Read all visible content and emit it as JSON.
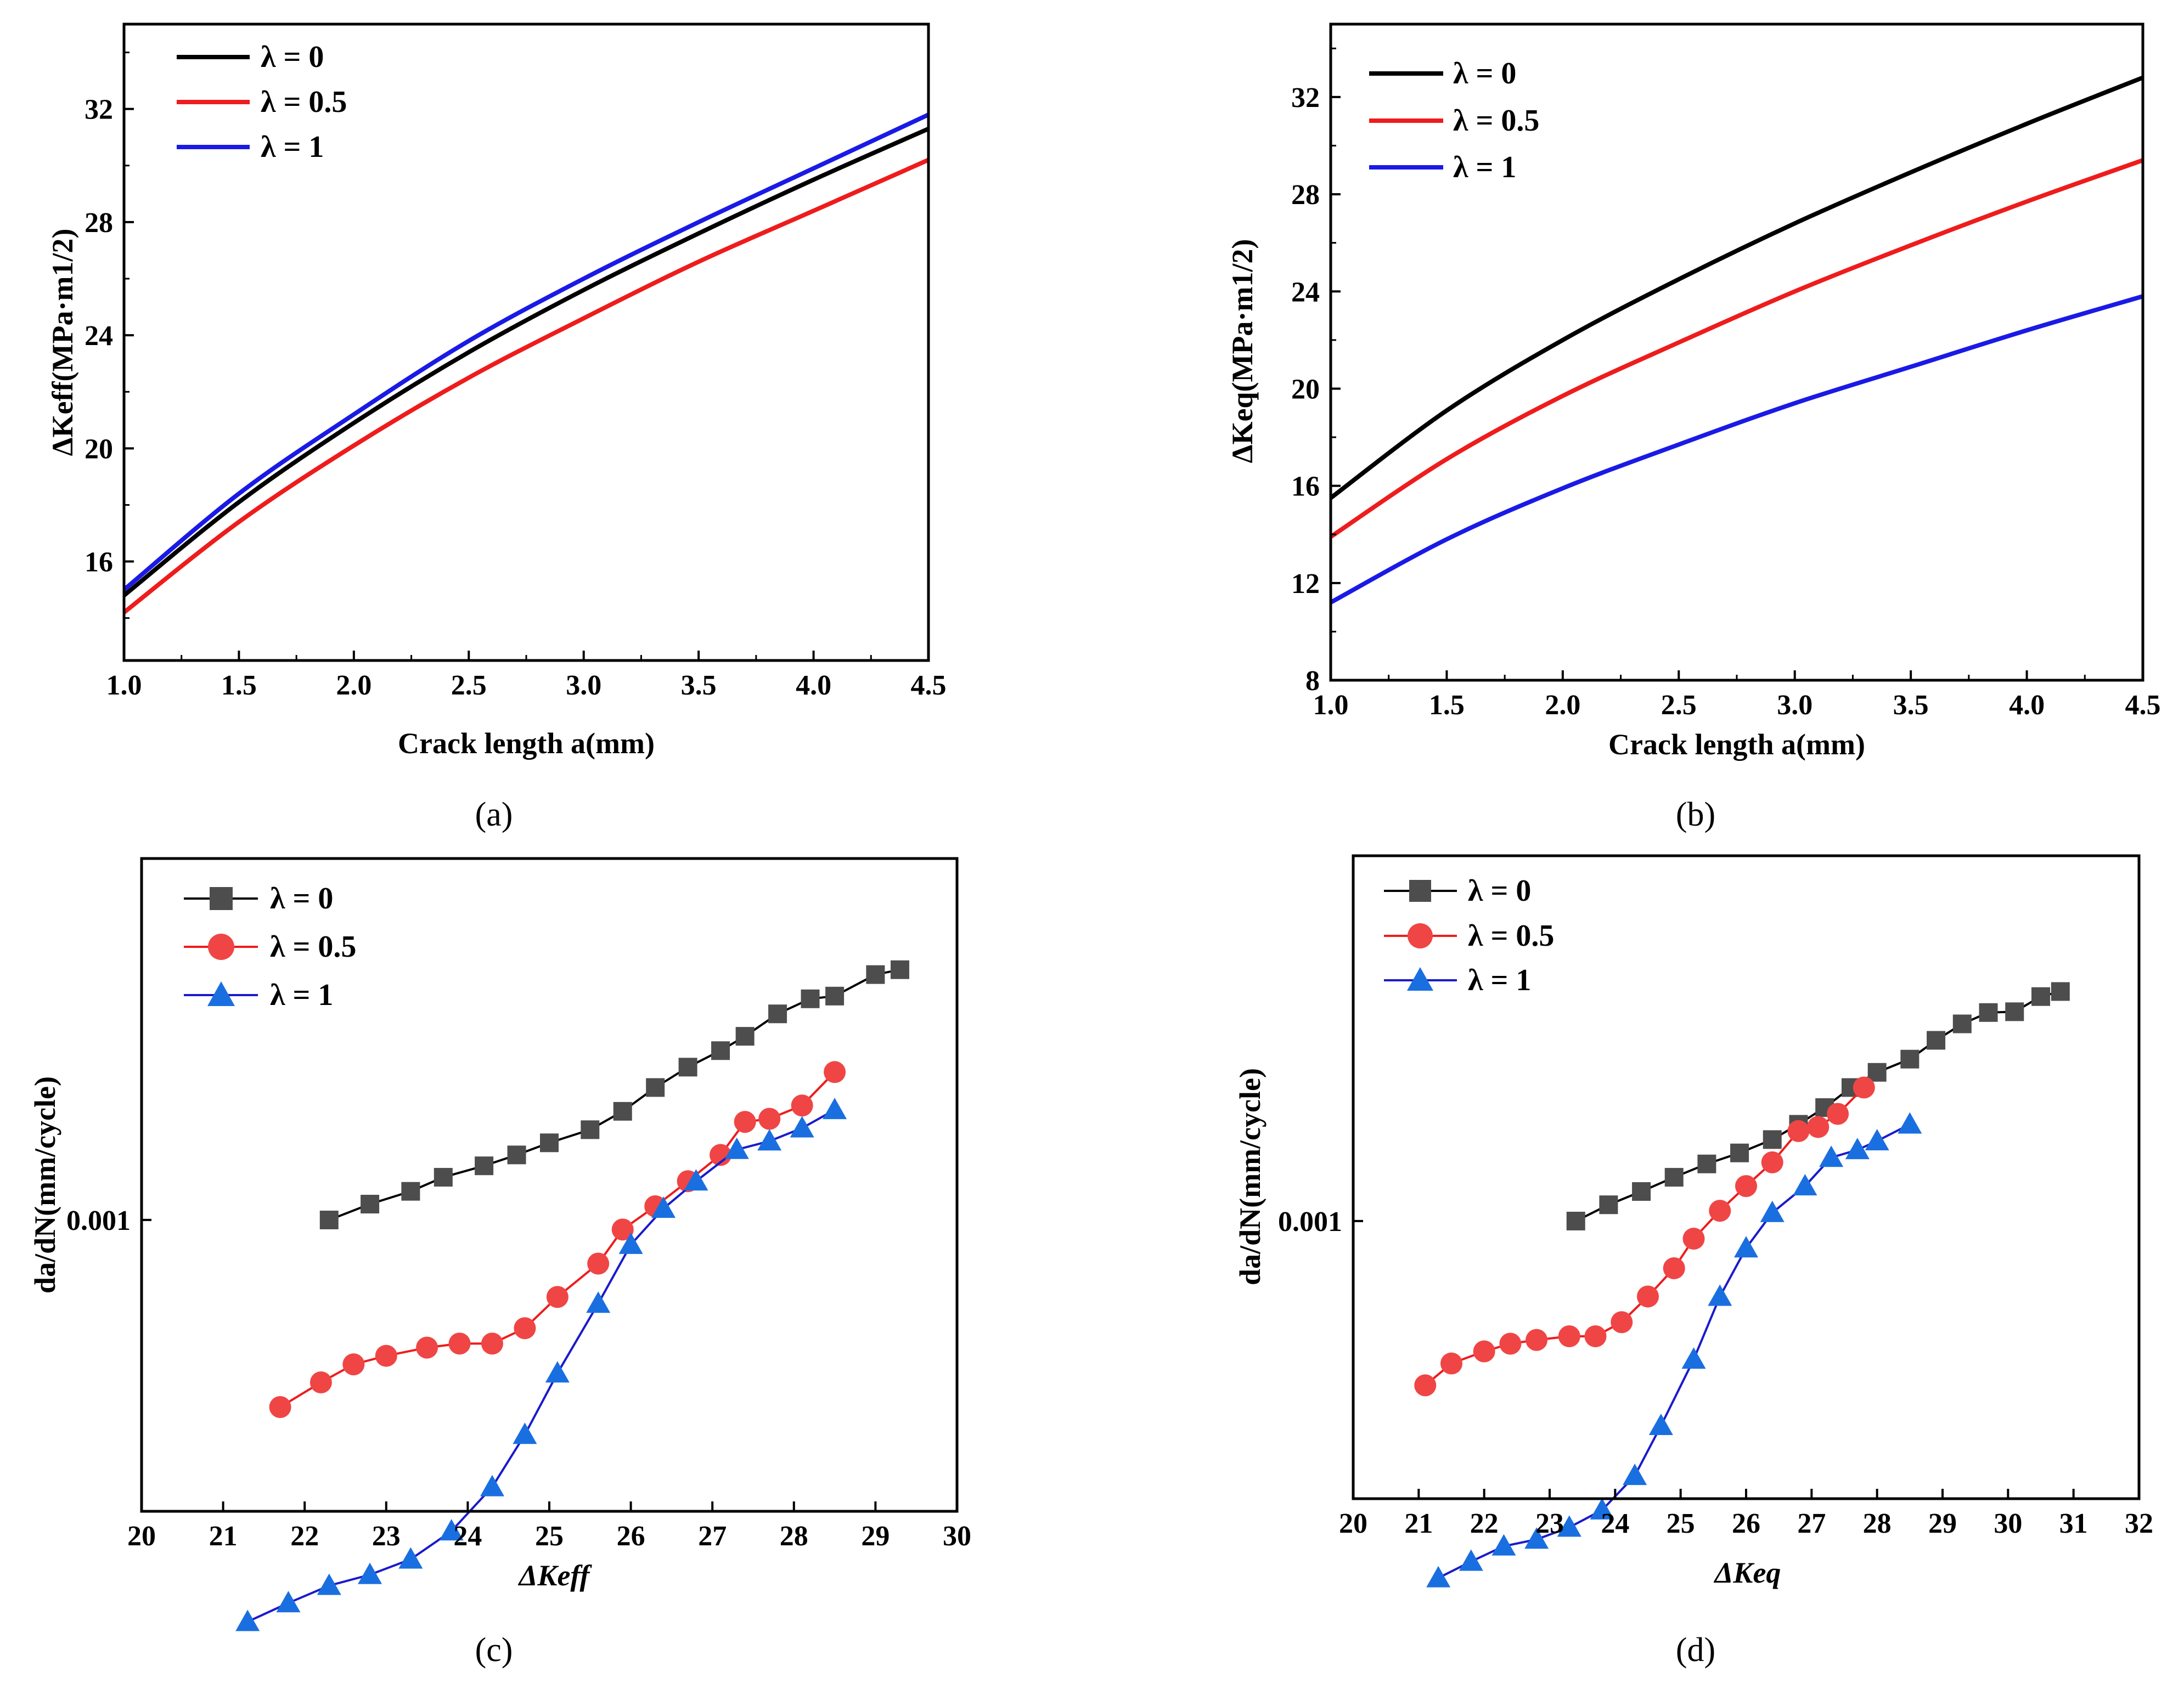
{
  "chart_data": [
    {
      "type": "line",
      "panel_label": "(a)",
      "xlabel": "Crack length a(mm)",
      "ylabel": "ΔKeff(MPa·m1/2)",
      "xlim": [
        1.0,
        4.5
      ],
      "ylim": [
        12.5,
        35.0
      ],
      "xticks": [
        "1.0",
        "1.5",
        "2.0",
        "2.5",
        "3.0",
        "3.5",
        "4.0",
        "4.5"
      ],
      "yticks": [
        "16",
        "20",
        "24",
        "28",
        "32"
      ],
      "legend": [
        "λ = 0",
        "λ = 0.5",
        "λ = 1"
      ],
      "series": [
        {
          "name": "λ = 0",
          "color": "#000000",
          "x": [
            1.0,
            1.5,
            2.0,
            2.5,
            3.0,
            3.5,
            4.0,
            4.5
          ],
          "y": [
            14.8,
            18.1,
            20.9,
            23.4,
            25.6,
            27.6,
            29.5,
            31.3
          ]
        },
        {
          "name": "λ = 0.5",
          "color": "#ee1c1c",
          "x": [
            1.0,
            1.5,
            2.0,
            2.5,
            3.0,
            3.5,
            4.0,
            4.5
          ],
          "y": [
            14.2,
            17.4,
            20.1,
            22.5,
            24.6,
            26.6,
            28.4,
            30.2
          ]
        },
        {
          "name": "λ = 1",
          "color": "#1a1ae6",
          "x": [
            1.0,
            1.5,
            2.0,
            2.5,
            3.0,
            3.5,
            4.0,
            4.5
          ],
          "y": [
            15.0,
            18.4,
            21.2,
            23.8,
            26.0,
            28.0,
            29.9,
            31.8
          ]
        }
      ]
    },
    {
      "type": "line",
      "panel_label": "(b)",
      "xlabel": "Crack length a(mm)",
      "ylabel": "ΔKeq(MPa·m1/2)",
      "xlim": [
        1.0,
        4.5
      ],
      "ylim": [
        8.0,
        35.0
      ],
      "xticks": [
        "1.0",
        "1.5",
        "2.0",
        "2.5",
        "3.0",
        "3.5",
        "4.0",
        "4.5"
      ],
      "yticks": [
        "8",
        "12",
        "16",
        "20",
        "24",
        "28",
        "32"
      ],
      "legend": [
        "λ = 0",
        "λ = 0.5",
        "λ = 1"
      ],
      "series": [
        {
          "name": "λ = 0",
          "color": "#000000",
          "x": [
            1.0,
            1.5,
            2.0,
            2.5,
            3.0,
            3.5,
            4.0,
            4.5
          ],
          "y": [
            15.5,
            19.1,
            22.0,
            24.5,
            26.8,
            28.9,
            30.9,
            32.8
          ]
        },
        {
          "name": "λ = 0.5",
          "color": "#ee1c1c",
          "x": [
            1.0,
            1.5,
            2.0,
            2.5,
            3.0,
            3.5,
            4.0,
            4.5
          ],
          "y": [
            13.9,
            17.1,
            19.7,
            21.9,
            24.0,
            25.9,
            27.7,
            29.4
          ]
        },
        {
          "name": "λ = 1",
          "color": "#1a1ae6",
          "x": [
            1.0,
            1.5,
            2.0,
            2.5,
            3.0,
            3.5,
            4.0,
            4.5
          ],
          "y": [
            11.2,
            13.8,
            15.9,
            17.7,
            19.4,
            20.9,
            22.4,
            23.8
          ]
        }
      ]
    },
    {
      "type": "scatter",
      "panel_label": "(c)",
      "xlabel": "ΔKeff",
      "ylabel": "da/dN(mm/cycle)",
      "yscale": "log",
      "xlim": [
        20,
        30
      ],
      "ylim_log10": [
        -3.54,
        -2.33
      ],
      "xticks": [
        "20",
        "21",
        "22",
        "23",
        "24",
        "25",
        "26",
        "27",
        "28",
        "29",
        "30"
      ],
      "yticks": [
        "0.001"
      ],
      "legend": [
        "λ = 0",
        "λ = 0.5",
        "λ = 1"
      ],
      "series": [
        {
          "name": "λ = 0",
          "marker": "square",
          "color": "#4d4d4d",
          "line": "#000000",
          "x": [
            22.3,
            22.8,
            23.3,
            23.7,
            24.2,
            24.6,
            25.0,
            25.5,
            25.9,
            26.3,
            26.7,
            27.1,
            27.4,
            27.8,
            28.2,
            28.5,
            29.0,
            29.3
          ],
          "y": [
            0.001,
            0.00107,
            0.00113,
            0.0012,
            0.00126,
            0.00132,
            0.00139,
            0.00147,
            0.00159,
            0.00176,
            0.00192,
            0.00206,
            0.00219,
            0.00241,
            0.00257,
            0.0026,
            0.00285,
            0.00291
          ]
        },
        {
          "name": "λ = 0.5",
          "marker": "circle",
          "color": "#f04545",
          "line": "#ee1c1c",
          "x": [
            21.7,
            22.2,
            22.6,
            23.0,
            23.5,
            23.9,
            24.3,
            24.7,
            25.1,
            25.6,
            25.9,
            26.3,
            26.7,
            27.1,
            27.4,
            27.7,
            28.1,
            28.5
          ],
          "y": [
            0.00045,
            0.0005,
            0.00054,
            0.00056,
            0.00058,
            0.00059,
            0.00059,
            0.00063,
            0.00072,
            0.00083,
            0.00096,
            0.00106,
            0.00118,
            0.00132,
            0.00152,
            0.00154,
            0.00163,
            0.00188
          ]
        },
        {
          "name": "λ = 1",
          "marker": "triangle",
          "color": "#1a6fe0",
          "line": "#1a1acc",
          "x": [
            21.3,
            21.8,
            22.3,
            22.8,
            23.3,
            23.8,
            24.3,
            24.7,
            25.1,
            25.6,
            26.0,
            26.4,
            26.8,
            27.3,
            27.7,
            28.1,
            28.5
          ],
          "y": [
            0.00018,
            0.000195,
            0.00021,
            0.00022,
            0.000235,
            0.000265,
            0.00032,
            0.0004,
            0.00052,
            0.0007,
            0.0009,
            0.00105,
            0.00118,
            0.00135,
            0.0014,
            0.00148,
            0.0016
          ]
        }
      ]
    },
    {
      "type": "scatter",
      "panel_label": "(d)",
      "xlabel": "ΔKeq",
      "ylabel": "da/dN(mm/cycle)",
      "yscale": "log",
      "xlim": [
        20,
        32
      ],
      "ylim_log10": [
        -3.57,
        -2.25
      ],
      "xticks": [
        "20",
        "21",
        "22",
        "23",
        "24",
        "25",
        "26",
        "27",
        "28",
        "29",
        "30",
        "31",
        "32"
      ],
      "yticks": [
        "0.001"
      ],
      "legend": [
        "λ = 0",
        "λ = 0.5",
        "λ = 1"
      ],
      "series": [
        {
          "name": "λ = 0",
          "marker": "square",
          "color": "#4d4d4d",
          "line": "#000000",
          "x": [
            23.4,
            23.9,
            24.4,
            24.9,
            25.4,
            25.9,
            26.4,
            26.8,
            27.2,
            27.6,
            28.0,
            28.5,
            28.9,
            29.3,
            29.7,
            30.1,
            30.5,
            30.8
          ],
          "y": [
            0.001,
            0.00108,
            0.00115,
            0.00123,
            0.00131,
            0.00138,
            0.00147,
            0.00158,
            0.00171,
            0.00188,
            0.00202,
            0.00215,
            0.00235,
            0.00254,
            0.00268,
            0.00269,
            0.00289,
            0.00296
          ]
        },
        {
          "name": "λ = 0.5",
          "marker": "circle",
          "color": "#f04545",
          "line": "#ee1c1c",
          "x": [
            21.1,
            21.5,
            22.0,
            22.4,
            22.8,
            23.3,
            23.7,
            24.1,
            24.5,
            24.9,
            25.2,
            25.6,
            26.0,
            26.4,
            26.8,
            27.1,
            27.4,
            27.8
          ],
          "y": [
            0.00046,
            0.00051,
            0.00054,
            0.00056,
            0.00057,
            0.00058,
            0.00058,
            0.00062,
            0.0007,
            0.0008,
            0.00092,
            0.00105,
            0.00118,
            0.00132,
            0.00153,
            0.00156,
            0.00166,
            0.00188
          ]
        },
        {
          "name": "λ = 1",
          "marker": "triangle",
          "color": "#1a6fe0",
          "line": "#1a1acc",
          "x": [
            21.3,
            21.8,
            22.3,
            22.8,
            23.3,
            23.8,
            24.3,
            24.7,
            25.2,
            25.6,
            26.0,
            26.4,
            26.9,
            27.3,
            27.7,
            28.0,
            28.5
          ],
          "y": [
            0.000185,
            0.0002,
            0.000215,
            0.000222,
            0.000235,
            0.000255,
            0.0003,
            0.00038,
            0.00052,
            0.0007,
            0.00088,
            0.00104,
            0.00118,
            0.00135,
            0.0014,
            0.00146,
            0.00158
          ]
        }
      ]
    }
  ]
}
